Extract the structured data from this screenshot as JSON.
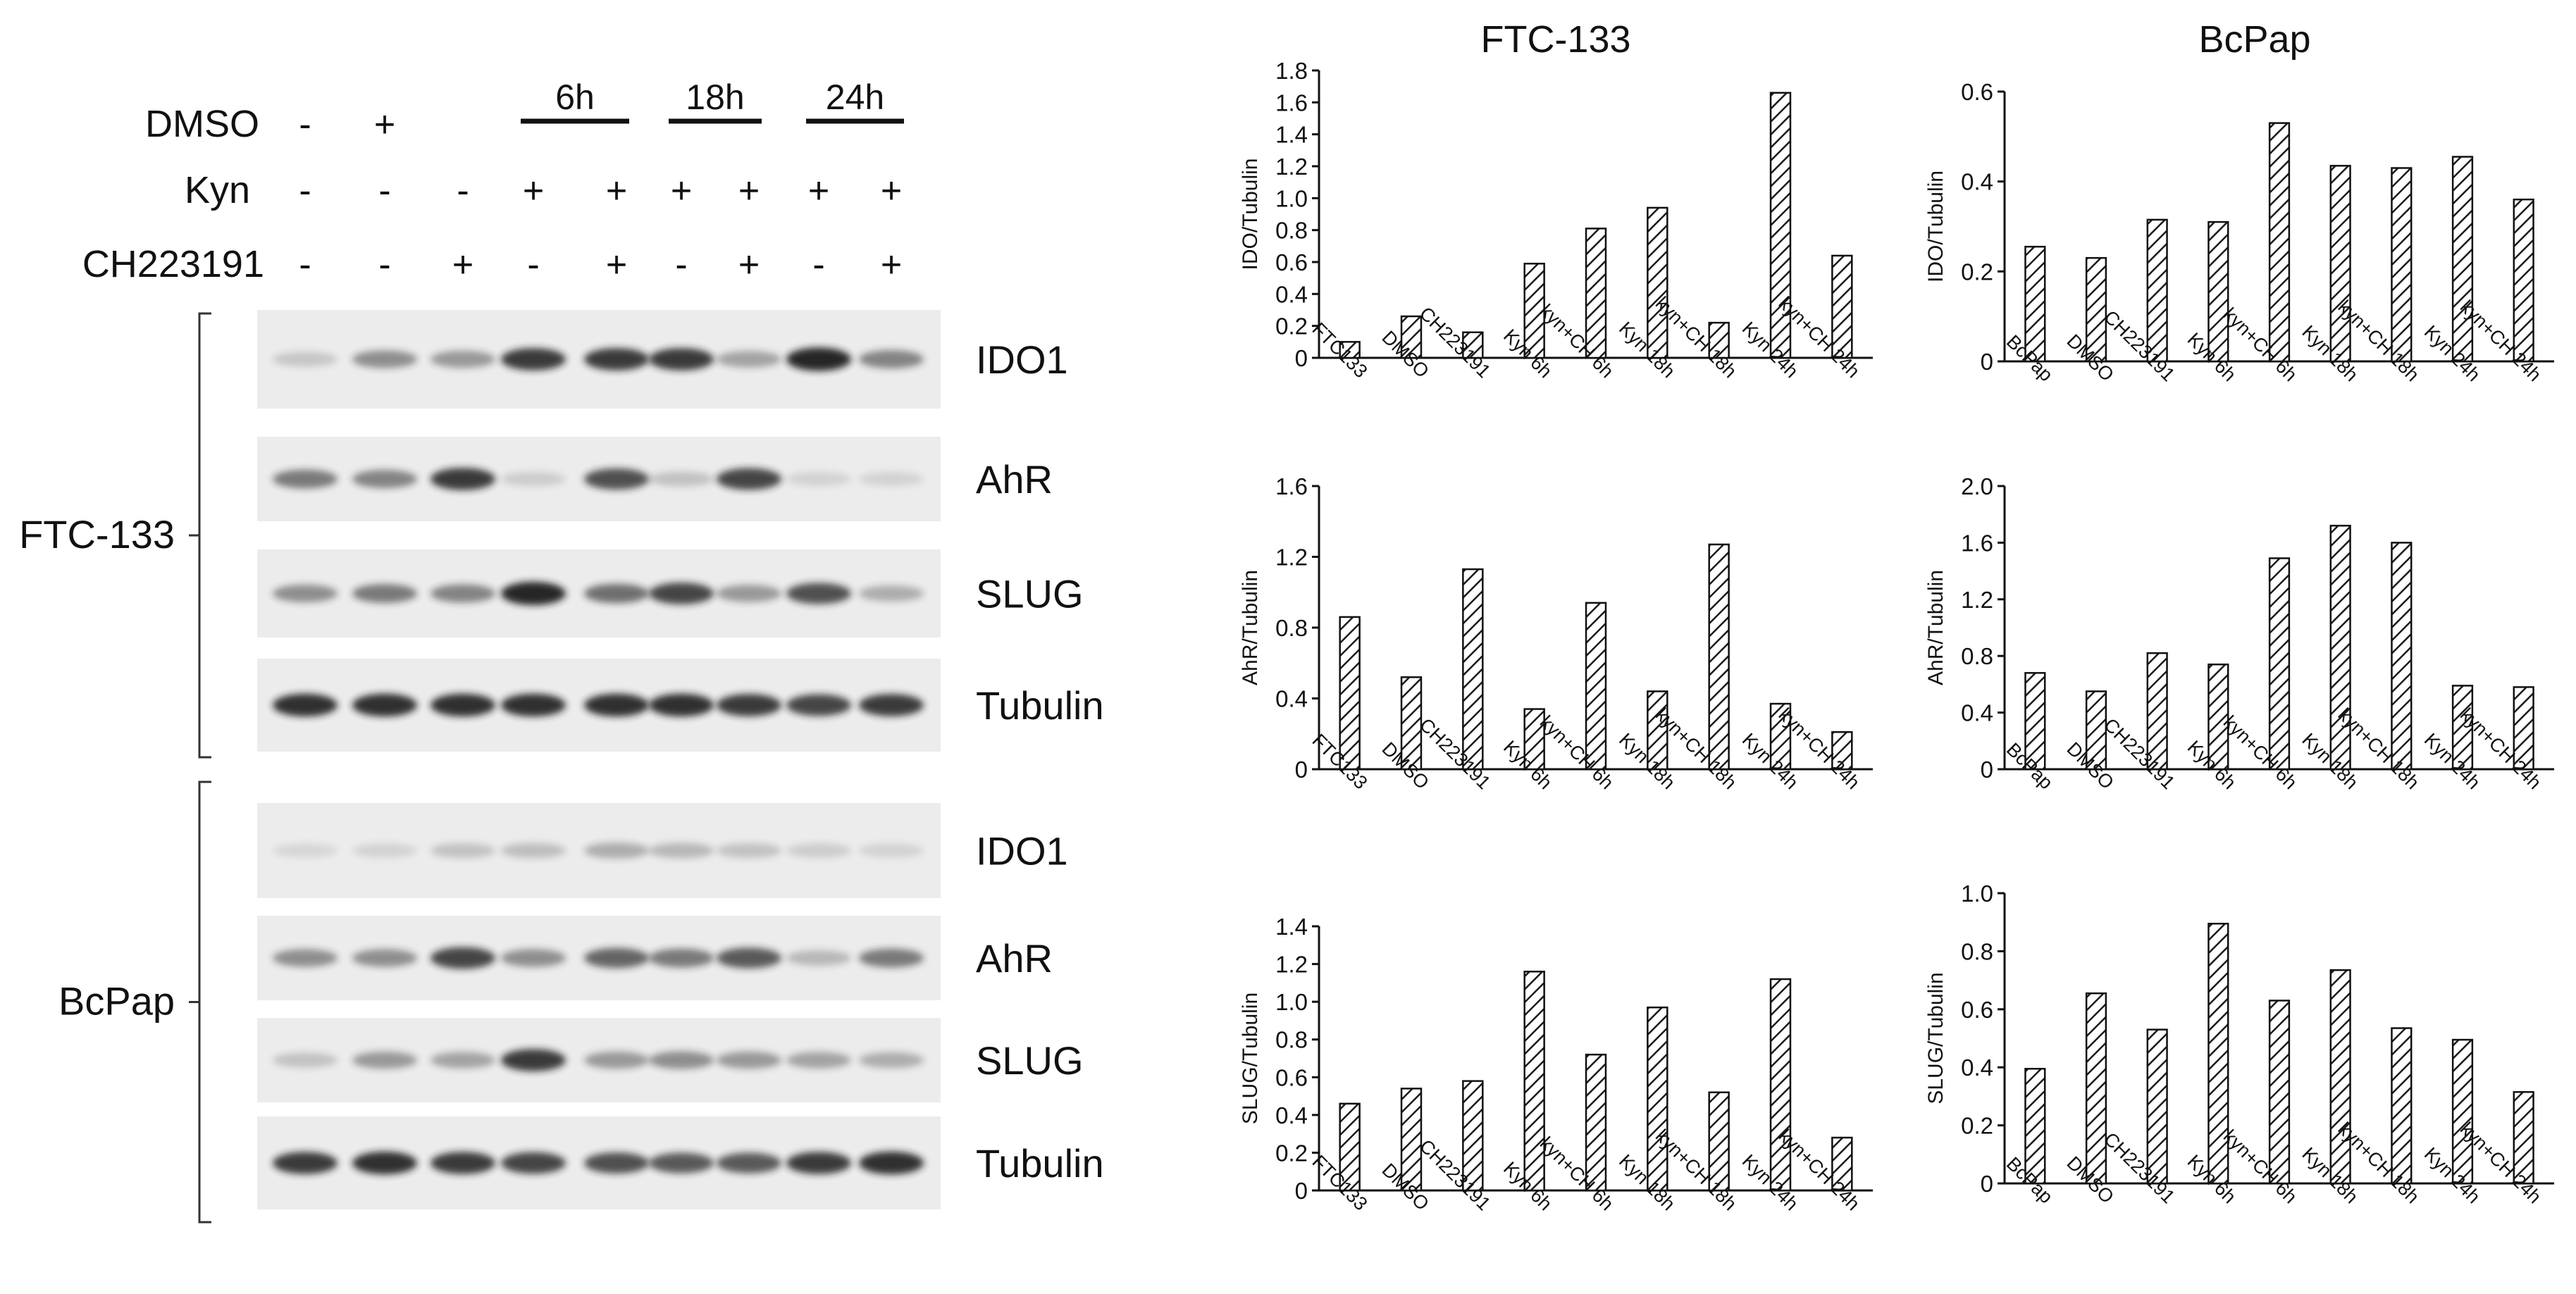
{
  "blot": {
    "treatment_rows": [
      {
        "label": "DMSO",
        "signs": [
          "-",
          "+",
          "",
          "",
          "",
          "",
          "",
          "",
          ""
        ]
      },
      {
        "label": "Kyn",
        "signs": [
          "-",
          "-",
          "-",
          "+",
          "+",
          "+",
          "+",
          "+",
          "+"
        ]
      },
      {
        "label": "CH223191",
        "signs": [
          "-",
          "-",
          "+",
          "-",
          "+",
          "-",
          "+",
          "-",
          "+"
        ]
      }
    ],
    "time_groups": [
      "6h",
      "18h",
      "24h"
    ],
    "cell_lines": [
      {
        "name": "FTC-133",
        "bands": [
          "IDO1",
          "AhR",
          "SLUG",
          "Tubulin"
        ]
      },
      {
        "name": "BcPap",
        "bands": [
          "IDO1",
          "AhR",
          "SLUG",
          "Tubulin"
        ]
      }
    ],
    "colors": {
      "band": "#1a1a1a",
      "membrane": "#ececec"
    }
  },
  "chart_columns": [
    {
      "title": "FTC-133"
    },
    {
      "title": "BcPap"
    }
  ],
  "chart_data": [
    {
      "type": "bar",
      "ylabel": "IDO/Tubulin",
      "categories": [
        "FTC133",
        "DMSO",
        "CH223191",
        "Kyn 6h",
        "kyn+CH 6h",
        "Kyn 18h",
        "kyn+CH 18h",
        "Kyn 24h",
        "kyn+CH 24h"
      ],
      "values": [
        0.1,
        0.26,
        0.16,
        0.59,
        0.81,
        0.94,
        0.22,
        1.66,
        0.64
      ],
      "ylim": [
        0,
        1.8
      ],
      "yticks": [
        "0",
        "0.2",
        "0.4",
        "0.6",
        "0.8",
        "1.0",
        "1.2",
        "1.4",
        "1.6",
        "1.8"
      ]
    },
    {
      "type": "bar",
      "ylabel": "IDO/Tubulin",
      "categories": [
        "BcPap",
        "DMSO",
        "CH223191",
        "Kyn 6h",
        "kyn+CH 6h",
        "Kyn 18h",
        "kyn+CH 18h",
        "Kyn 24h",
        "kyn+CH 24h"
      ],
      "values": [
        0.255,
        0.23,
        0.315,
        0.31,
        0.53,
        0.435,
        0.43,
        0.455,
        0.36
      ],
      "ylim": [
        0,
        0.6
      ],
      "yticks": [
        "0",
        "0.2",
        "0.4",
        "0.6"
      ]
    },
    {
      "type": "bar",
      "ylabel": "AhR/Tubulin",
      "categories": [
        "FTC133",
        "DMSO",
        "CH223191",
        "Kyn 6h",
        "kyn+CH 6h",
        "Kyn 18h",
        "kyn+CH 18h",
        "Kyn 24h",
        "kyn+CH 24h"
      ],
      "values": [
        0.86,
        0.52,
        1.13,
        0.34,
        0.94,
        0.44,
        1.27,
        0.37,
        0.21
      ],
      "ylim": [
        0,
        1.6
      ],
      "yticks": [
        "0",
        "0.4",
        "0.8",
        "1.2",
        "1.6"
      ]
    },
    {
      "type": "bar",
      "ylabel": "AhR/Tubulin",
      "categories": [
        "BcPap",
        "DMSO",
        "CH223191",
        "Kyn 6h",
        "kyn+CH 6h",
        "Kyn 18h",
        "kyn+CH 18h",
        "Kyn 24h",
        "kyn+CH 24h"
      ],
      "values": [
        0.68,
        0.55,
        0.82,
        0.74,
        1.49,
        1.72,
        1.6,
        0.59,
        0.58
      ],
      "ylim": [
        0,
        2.0
      ],
      "yticks": [
        "0",
        "0.4",
        "0.8",
        "1.2",
        "1.6",
        "2.0"
      ]
    },
    {
      "type": "bar",
      "ylabel": "SLUG/Tubulin",
      "categories": [
        "FTC133",
        "DMSO",
        "CH223191",
        "Kyn 6h",
        "kyn+CH 6h",
        "Kyn 18h",
        "kyn+CH 18h",
        "Kyn 24h",
        "kyn+CH 24h"
      ],
      "values": [
        0.46,
        0.54,
        0.58,
        1.16,
        0.72,
        0.97,
        0.52,
        1.12,
        0.28
      ],
      "ylim": [
        0,
        1.4
      ],
      "yticks": [
        "0",
        "0.2",
        "0.4",
        "0.6",
        "0.8",
        "1.0",
        "1.2",
        "1.4"
      ]
    },
    {
      "type": "bar",
      "ylabel": "SLUG/Tubulin",
      "categories": [
        "BcPap",
        "DMSO",
        "CH223191",
        "Kyn 6h",
        "kyn+CH 6h",
        "Kyn 18h",
        "kyn+CH 18h",
        "Kyn 24h",
        "kyn+CH 24h"
      ],
      "values": [
        0.395,
        0.655,
        0.53,
        0.895,
        0.63,
        0.735,
        0.535,
        0.495,
        0.315
      ],
      "ylim": [
        0,
        1.0
      ],
      "yticks": [
        "0",
        "0.2",
        "0.4",
        "0.6",
        "0.8",
        "1.0"
      ]
    }
  ]
}
